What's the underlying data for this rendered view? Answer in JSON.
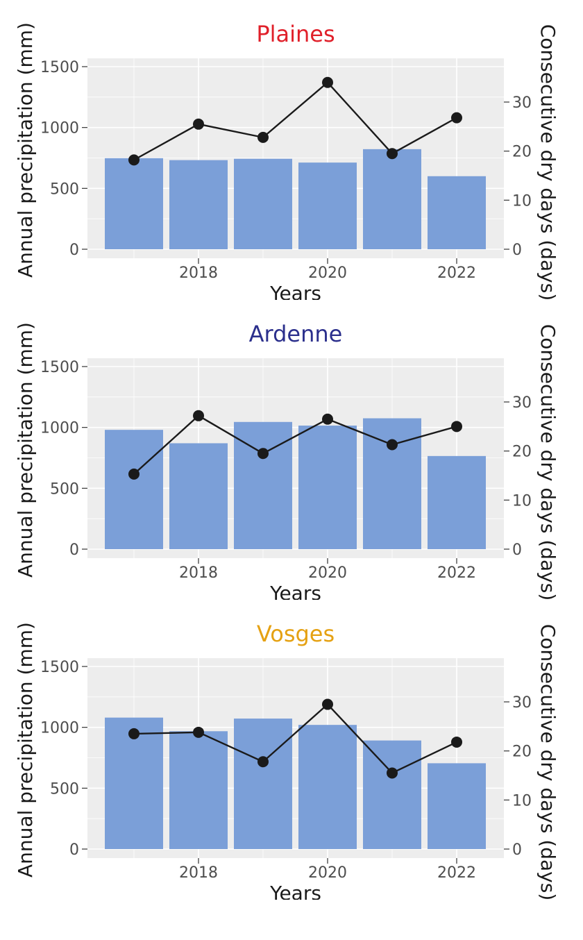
{
  "chart_data": [
    {
      "type": "bar",
      "title": "Plaines",
      "title_color": "#e0202a",
      "xlabel": "Years",
      "ylabel": "Annual precipitation (mm)",
      "y2label": "Consecutive dry days (days)",
      "ylim": [
        0,
        1500
      ],
      "y2lim": [
        0,
        30
      ],
      "xticks": [
        2018,
        2020,
        2022
      ],
      "yticks": [
        0,
        500,
        1000,
        1500
      ],
      "y2ticks": [
        0,
        10,
        20,
        30
      ],
      "categories": [
        2017,
        2018,
        2019,
        2020,
        2021,
        2022
      ],
      "series": [
        {
          "values": [
            748,
            732,
            743,
            712,
            822,
            600
          ],
          "color": "#7b9fd8"
        },
        {
          "type": "line",
          "axis": "right",
          "values": [
            18.2,
            25.5,
            22.8,
            34.0,
            19.5,
            26.8
          ],
          "color": "#1a1a1a"
        }
      ]
    },
    {
      "type": "bar",
      "title": "Ardenne",
      "title_color": "#2b2f8c",
      "xlabel": "Years",
      "ylabel": "Annual precipitation (mm)",
      "y2label": "Consecutive dry days (days)",
      "ylim": [
        0,
        1500
      ],
      "y2lim": [
        0,
        30
      ],
      "xticks": [
        2018,
        2020,
        2022
      ],
      "yticks": [
        0,
        500,
        1000,
        1500
      ],
      "y2ticks": [
        0,
        10,
        20,
        30
      ],
      "categories": [
        2017,
        2018,
        2019,
        2020,
        2021,
        2022
      ],
      "series": [
        {
          "values": [
            980,
            870,
            1045,
            1015,
            1075,
            765
          ],
          "color": "#7b9fd8"
        },
        {
          "type": "line",
          "axis": "right",
          "values": [
            15.3,
            27.2,
            19.5,
            26.5,
            21.3,
            25.0
          ],
          "color": "#1a1a1a"
        }
      ]
    },
    {
      "type": "bar",
      "title": "Vosges",
      "title_color": "#e5a113",
      "xlabel": "Years",
      "ylabel": "Annual precipitation (mm)",
      "y2label": "Consecutive dry days (days)",
      "ylim": [
        0,
        1500
      ],
      "y2lim": [
        0,
        30
      ],
      "xticks": [
        2018,
        2020,
        2022
      ],
      "yticks": [
        0,
        500,
        1000,
        1500
      ],
      "y2ticks": [
        0,
        10,
        20,
        30
      ],
      "categories": [
        2017,
        2018,
        2019,
        2020,
        2021,
        2022
      ],
      "series": [
        {
          "values": [
            1080,
            968,
            1072,
            1020,
            892,
            705
          ],
          "color": "#7b9fd8"
        },
        {
          "type": "line",
          "axis": "right",
          "values": [
            23.5,
            23.8,
            17.8,
            29.5,
            15.5,
            21.8
          ],
          "color": "#1a1a1a"
        }
      ]
    }
  ]
}
